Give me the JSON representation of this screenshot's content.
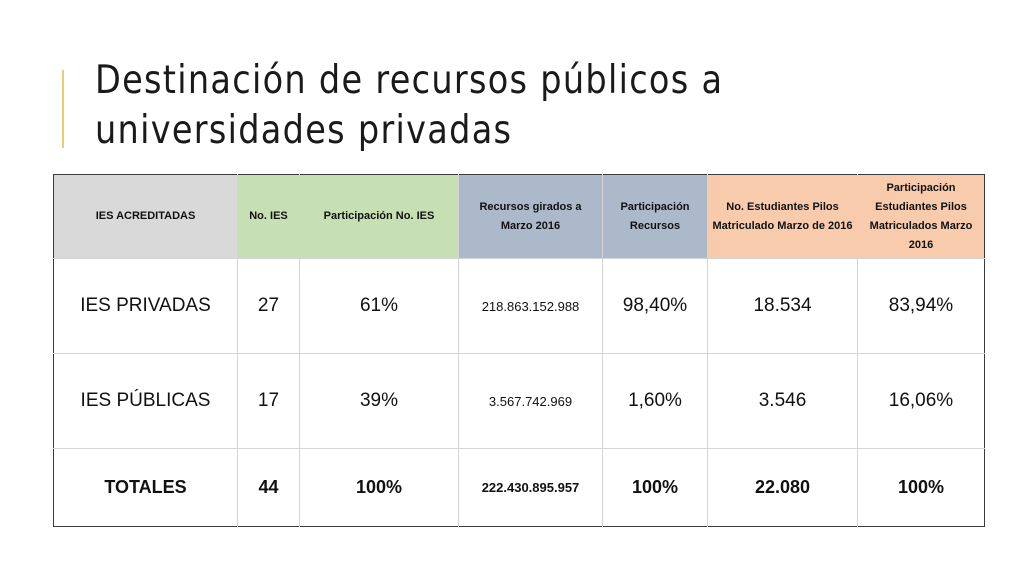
{
  "slide": {
    "title_line1": "Destinación de recursos públicos a",
    "title_line2": "universidades privadas",
    "accent_color": "#e9cd72"
  },
  "table": {
    "header_colors": {
      "grey": "#d9d9d9",
      "green": "#c6e0b4",
      "blue": "#acb9ca",
      "peach": "#f8cbad"
    },
    "headers": [
      "IES ACREDITADAS",
      "No. IES",
      "Participación No. IES",
      "Recursos girados a Marzo 2016",
      "Participación Recursos",
      "No. Estudiantes Pilos Matriculado Marzo de 2016",
      "Participación Estudiantes Pilos Matriculados Marzo 2016"
    ],
    "rows": [
      [
        "IES PRIVADAS",
        "27",
        "61%",
        "218.863.152.988",
        "98,40%",
        "18.534",
        "83,94%"
      ],
      [
        "IES PÚBLICAS",
        "17",
        "39%",
        "3.567.742.969",
        "1,60%",
        "3.546",
        "16,06%"
      ],
      [
        "TOTALES",
        "44",
        "100%",
        "222.430.895.957",
        "100%",
        "22.080",
        "100%"
      ]
    ]
  }
}
